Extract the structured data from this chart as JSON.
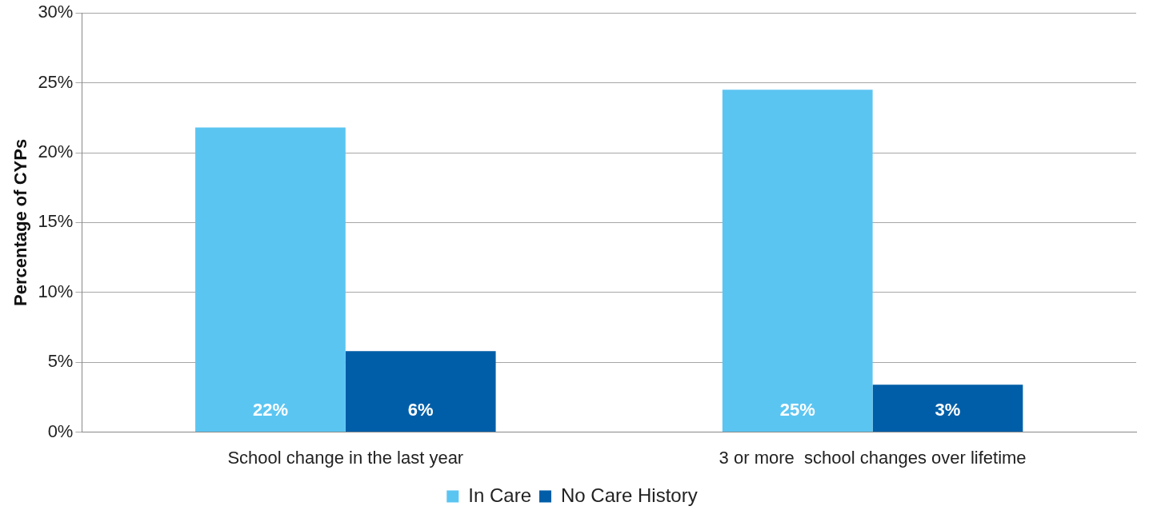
{
  "chart_data": {
    "type": "bar",
    "ylabel": "Percentage of CYPs",
    "categories": [
      "School change in the last year",
      "3 or more  school changes over lifetime"
    ],
    "series": [
      {
        "name": "In Care",
        "color": "#5bc5f2",
        "values": [
          21.8,
          24.5
        ],
        "value_labels": [
          "22%",
          "25%"
        ]
      },
      {
        "name": "No Care History",
        "color": "#005ea8",
        "values": [
          5.8,
          3.4
        ],
        "value_labels": [
          "6%",
          "3%"
        ]
      }
    ],
    "ylim": [
      0,
      30
    ],
    "yticks": [
      {
        "value": 0,
        "label": "0%"
      },
      {
        "value": 5,
        "label": "5%"
      },
      {
        "value": 10,
        "label": "10%"
      },
      {
        "value": 15,
        "label": "15%"
      },
      {
        "value": 20,
        "label": "20%"
      },
      {
        "value": 25,
        "label": "25%"
      },
      {
        "value": 30,
        "label": "30%"
      }
    ],
    "grid": "y",
    "legend": "bottom"
  }
}
